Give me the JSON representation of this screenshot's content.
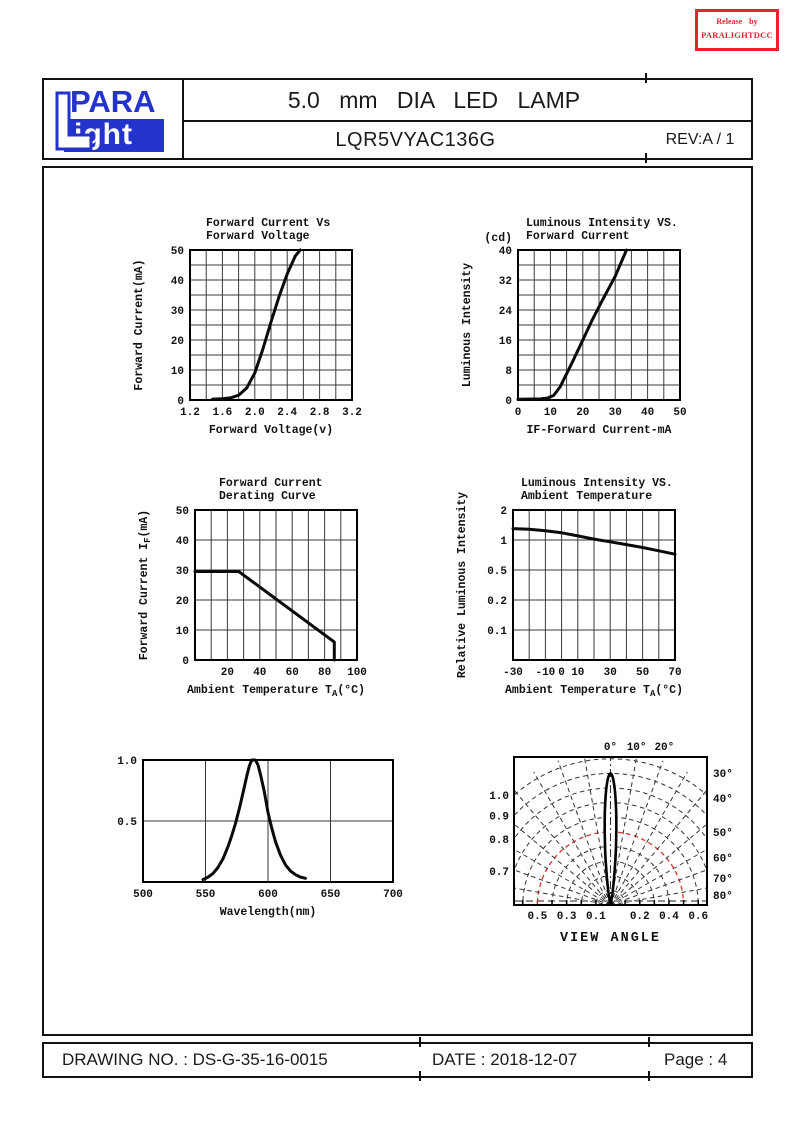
{
  "release": {
    "line1": "Release by",
    "line2": "PARALIGHTDCC",
    "color": "#e8232e"
  },
  "header": {
    "logo": {
      "top": "PARA",
      "bottom": "ight",
      "color": "#2433cb"
    },
    "title": "5.0 mm DIA LED LAMP",
    "part_number": "LQR5VYAC136G",
    "rev": "REV:A / 1"
  },
  "footer": {
    "drawing_no": "DRAWING NO. : DS-G-35-16-0015",
    "date": "DATE : 2018-12-07",
    "page": "Page : 4"
  },
  "chart_data": [
    {
      "id": "c1",
      "type": "line",
      "title_lines": [
        "Forward Current Vs",
        "Forward Voltage"
      ],
      "xlabel": "Forward Voltage(v)",
      "ylabel": "Forward Current(mA)",
      "xlim": [
        1.2,
        3.2
      ],
      "ylim": [
        0,
        50
      ],
      "xgrid": [
        1.4,
        1.6,
        1.8,
        2.0,
        2.2,
        2.4,
        2.6,
        2.8,
        3.0
      ],
      "ygrid": [
        5,
        10,
        15,
        20,
        25,
        30,
        35,
        40,
        45
      ],
      "xticks": [
        [
          1.2,
          "1.2"
        ],
        [
          1.6,
          "1.6"
        ],
        [
          2.0,
          "2.0"
        ],
        [
          2.4,
          "2.4"
        ],
        [
          2.8,
          "2.8"
        ],
        [
          3.2,
          "3.2"
        ]
      ],
      "yticks": [
        [
          0,
          "0"
        ],
        [
          10,
          "10"
        ],
        [
          20,
          "20"
        ],
        [
          30,
          "30"
        ],
        [
          40,
          "40"
        ],
        [
          50,
          "50"
        ]
      ],
      "curve": [
        [
          1.48,
          0.3
        ],
        [
          1.6,
          0.4
        ],
        [
          1.7,
          0.7
        ],
        [
          1.8,
          1.6
        ],
        [
          1.9,
          4
        ],
        [
          2.0,
          9
        ],
        [
          2.1,
          17
        ],
        [
          2.2,
          26
        ],
        [
          2.3,
          34.5
        ],
        [
          2.4,
          42
        ],
        [
          2.5,
          48
        ],
        [
          2.56,
          50
        ]
      ]
    },
    {
      "id": "c2",
      "type": "line",
      "title_lines": [
        "Luminous Intensity VS.",
        "Forward Current"
      ],
      "xlabel": "IF-Forward Current-mA",
      "ylabel": "Luminous Intensity",
      "y_unit": "(cd)",
      "xlim": [
        0,
        50
      ],
      "ylim": [
        0,
        40
      ],
      "xgrid": [
        5,
        10,
        15,
        20,
        25,
        30,
        35,
        40,
        45
      ],
      "ygrid": [
        4,
        8,
        12,
        16,
        20,
        24,
        28,
        32,
        36
      ],
      "xticks": [
        [
          0,
          "0"
        ],
        [
          10,
          "10"
        ],
        [
          20,
          "20"
        ],
        [
          30,
          "30"
        ],
        [
          40,
          "40"
        ],
        [
          50,
          "50"
        ]
      ],
      "yticks": [
        [
          0,
          "0"
        ],
        [
          8,
          "8"
        ],
        [
          16,
          "16"
        ],
        [
          24,
          "24"
        ],
        [
          32,
          "32"
        ],
        [
          40,
          "40"
        ]
      ],
      "curve": [
        [
          0,
          0.2
        ],
        [
          7,
          0.3
        ],
        [
          9,
          0.5
        ],
        [
          11,
          1.2
        ],
        [
          13,
          3.5
        ],
        [
          15,
          7
        ],
        [
          17,
          10.5
        ],
        [
          20,
          16
        ],
        [
          23,
          21.5
        ],
        [
          26,
          26.5
        ],
        [
          30,
          33
        ],
        [
          33.5,
          40
        ]
      ]
    },
    {
      "id": "c3",
      "type": "line",
      "title_lines": [
        "Forward Current",
        "Derating Curve"
      ],
      "xlabel": {
        "pre": "Ambient Temperature T",
        "sub": "A",
        "post": "(°C)"
      },
      "ylabel": {
        "pre": "Forward Current I",
        "sub": "F",
        "post": "(mA)"
      },
      "xlim": [
        0,
        100
      ],
      "ylim": [
        0,
        50
      ],
      "xgrid": [
        10,
        20,
        30,
        40,
        50,
        60,
        70,
        80,
        90
      ],
      "ygrid": [
        10,
        20,
        30,
        40
      ],
      "xticks": [
        [
          20,
          "20"
        ],
        [
          40,
          "40"
        ],
        [
          60,
          "60"
        ],
        [
          80,
          "80"
        ],
        [
          100,
          "100"
        ]
      ],
      "yticks": [
        [
          0,
          "0"
        ],
        [
          10,
          "10"
        ],
        [
          20,
          "20"
        ],
        [
          30,
          "30"
        ],
        [
          40,
          "40"
        ],
        [
          50,
          "50"
        ]
      ],
      "curve": [
        [
          0,
          29.5
        ],
        [
          27,
          29.5
        ],
        [
          86,
          6
        ],
        [
          86,
          0
        ]
      ]
    },
    {
      "id": "c4",
      "type": "line",
      "yscale": "steplog",
      "title_lines": [
        "Luminous Intensity VS.",
        "Ambient Temperature"
      ],
      "xlabel": {
        "pre": "Ambient Temperature T",
        "sub": "A",
        "post": "(°C)"
      },
      "ylabel": "Relative Luminous Intensity",
      "xlim": [
        -30,
        70
      ],
      "ystops": [
        2,
        1,
        0.5,
        0.2,
        0.1
      ],
      "xgrid": [
        -20,
        -10,
        0,
        10,
        20,
        30,
        40,
        50,
        60
      ],
      "xticks": [
        [
          -30,
          "-30"
        ],
        [
          -10,
          "-10"
        ],
        [
          0,
          "0"
        ],
        [
          10,
          "10"
        ],
        [
          30,
          "30"
        ],
        [
          50,
          "50"
        ],
        [
          70,
          "70"
        ]
      ],
      "yticks": [
        [
          2,
          "2"
        ],
        [
          1,
          "1"
        ],
        [
          0.5,
          "0.5"
        ],
        [
          0.2,
          "0.2"
        ],
        [
          0.1,
          "0.1"
        ]
      ],
      "curve": [
        [
          -30,
          1.3
        ],
        [
          -20,
          1.28
        ],
        [
          -10,
          1.24
        ],
        [
          0,
          1.18
        ],
        [
          10,
          1.1
        ],
        [
          20,
          1.02
        ],
        [
          30,
          0.96
        ],
        [
          40,
          0.9
        ],
        [
          50,
          0.84
        ],
        [
          60,
          0.78
        ],
        [
          70,
          0.72
        ]
      ]
    },
    {
      "id": "c5",
      "type": "line",
      "title_lines": [],
      "xlabel": "Wavelength(nm)",
      "ylabel": "",
      "xlim": [
        500,
        700
      ],
      "ylim": [
        0,
        1
      ],
      "xgrid": [
        550,
        600,
        650
      ],
      "ygrid": [
        0.5
      ],
      "xticks": [
        [
          500,
          "500"
        ],
        [
          550,
          "550"
        ],
        [
          600,
          "600"
        ],
        [
          650,
          "650"
        ],
        [
          700,
          "700"
        ]
      ],
      "yticks": [
        [
          1,
          "1.0"
        ],
        [
          0.5,
          "0.5"
        ]
      ],
      "curve": [
        [
          548,
          0.02
        ],
        [
          552,
          0.04
        ],
        [
          556,
          0.07
        ],
        [
          560,
          0.12
        ],
        [
          564,
          0.19
        ],
        [
          568,
          0.29
        ],
        [
          571,
          0.38
        ],
        [
          574,
          0.48
        ],
        [
          577,
          0.6
        ],
        [
          580,
          0.73
        ],
        [
          583,
          0.87
        ],
        [
          585,
          0.95
        ],
        [
          587,
          1.0
        ],
        [
          590,
          1.0
        ],
        [
          592,
          0.96
        ],
        [
          594,
          0.88
        ],
        [
          597,
          0.74
        ],
        [
          600,
          0.57
        ],
        [
          603,
          0.44
        ],
        [
          606,
          0.33
        ],
        [
          610,
          0.22
        ],
        [
          614,
          0.14
        ],
        [
          618,
          0.09
        ],
        [
          622,
          0.06
        ],
        [
          626,
          0.04
        ],
        [
          630,
          0.03
        ]
      ]
    },
    {
      "id": "c6",
      "type": "polar",
      "title": "VIEW ANGLE",
      "rings": [
        0.1,
        0.2,
        0.3,
        0.4,
        0.5,
        0.6,
        0.7,
        0.8,
        0.9,
        1.0
      ],
      "highlight_ring": 0.5,
      "highlight_color": "#d8342b",
      "angle_lines_deg": [
        10,
        20,
        30,
        40,
        50,
        60,
        70,
        80
      ],
      "top_angle_labels": [
        [
          0,
          "0°"
        ],
        [
          10,
          "10°"
        ],
        [
          20,
          "20°"
        ]
      ],
      "right_angle_labels": [
        [
          30,
          "30°"
        ],
        [
          40,
          "40°"
        ],
        [
          50,
          "50°"
        ],
        [
          60,
          "60°"
        ],
        [
          70,
          "70°"
        ],
        [
          80,
          "80°"
        ]
      ],
      "left_radius_labels": [
        [
          1.0,
          "1.0"
        ],
        [
          0.9,
          "0.9"
        ],
        [
          0.8,
          "0.8"
        ],
        [
          0.7,
          "0.7"
        ]
      ],
      "bottom_radius_labels_left": [
        [
          0.5,
          "0.5"
        ],
        [
          0.3,
          "0.3"
        ],
        [
          0.1,
          "0.1"
        ]
      ],
      "bottom_radius_labels_right": [
        [
          0.2,
          "0.2"
        ],
        [
          0.4,
          "0.4"
        ],
        [
          0.6,
          "0.6"
        ]
      ],
      "x_extent": 0.66,
      "lobe": {
        "peak": 0.9,
        "sigma_deg": 4.2
      }
    }
  ]
}
